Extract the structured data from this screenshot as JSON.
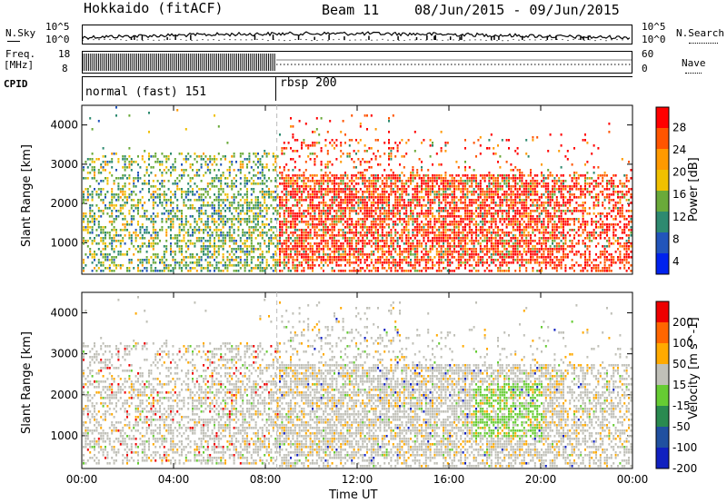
{
  "header": {
    "station": "Hokkaido (fitACF)",
    "beam": "Beam 11",
    "dates": "08/Jun/2015 - 09/Jun/2015"
  },
  "nsky_panel": {
    "left_label": "N.Sky",
    "right_label": "N.Search",
    "left_ticks": [
      "10^5",
      "10^0"
    ],
    "right_ticks": [
      "10^5",
      "10^0"
    ]
  },
  "freq_panel": {
    "left_label_1": "Freq.",
    "left_label_2": "[MHz]",
    "left_ticks": [
      "18",
      "8"
    ],
    "right_label": "Nave",
    "right_ticks": [
      "60",
      "0"
    ]
  },
  "cpid_panel": {
    "label": "CPID",
    "modes": [
      {
        "name": "normal (fast) 151",
        "start_hour": 0
      },
      {
        "name": "rbsp 200",
        "start_hour": 8.5
      }
    ]
  },
  "chart_data": [
    {
      "type": "heatmap",
      "quantity": "Power",
      "ylabel": "Slant Range [km]",
      "ylim": [
        200,
        4500
      ],
      "yticks": [
        1000,
        2000,
        3000,
        4000
      ],
      "colorbar_label": "Power [dB]",
      "colorbar_ticks": [
        "28",
        "24",
        "20",
        "16",
        "12",
        "8",
        "4"
      ],
      "colors": [
        "#0022ee",
        "#2255bb",
        "#2e8a70",
        "#6aaa3a",
        "#f0c000",
        "#ff9a00",
        "#ff5500",
        "#ff0000"
      ],
      "xlim_hours": [
        0,
        24
      ],
      "xticks": [
        "00:00",
        "04:00",
        "08:00",
        "12:00",
        "16:00",
        "20:00",
        "00:00"
      ]
    },
    {
      "type": "heatmap",
      "quantity": "Velocity",
      "ylabel": "Slant Range [km]",
      "ylim": [
        200,
        4500
      ],
      "yticks": [
        1000,
        2000,
        3000,
        4000
      ],
      "colorbar_label": "Velocity [m s^-1]",
      "colorbar_ticks": [
        "200",
        "100",
        "50",
        "15",
        "-15",
        "-50",
        "-100",
        "-200"
      ],
      "colors": [
        "#1020c0",
        "#2050a0",
        "#2a8a50",
        "#66cc33",
        "#c0c0b8",
        "#ffaa00",
        "#ff6600",
        "#ee0000"
      ],
      "xlim_hours": [
        0,
        24
      ],
      "xticks": [
        "00:00",
        "04:00",
        "08:00",
        "12:00",
        "16:00",
        "20:00",
        "00:00"
      ],
      "xlabel": "Time UT"
    }
  ]
}
